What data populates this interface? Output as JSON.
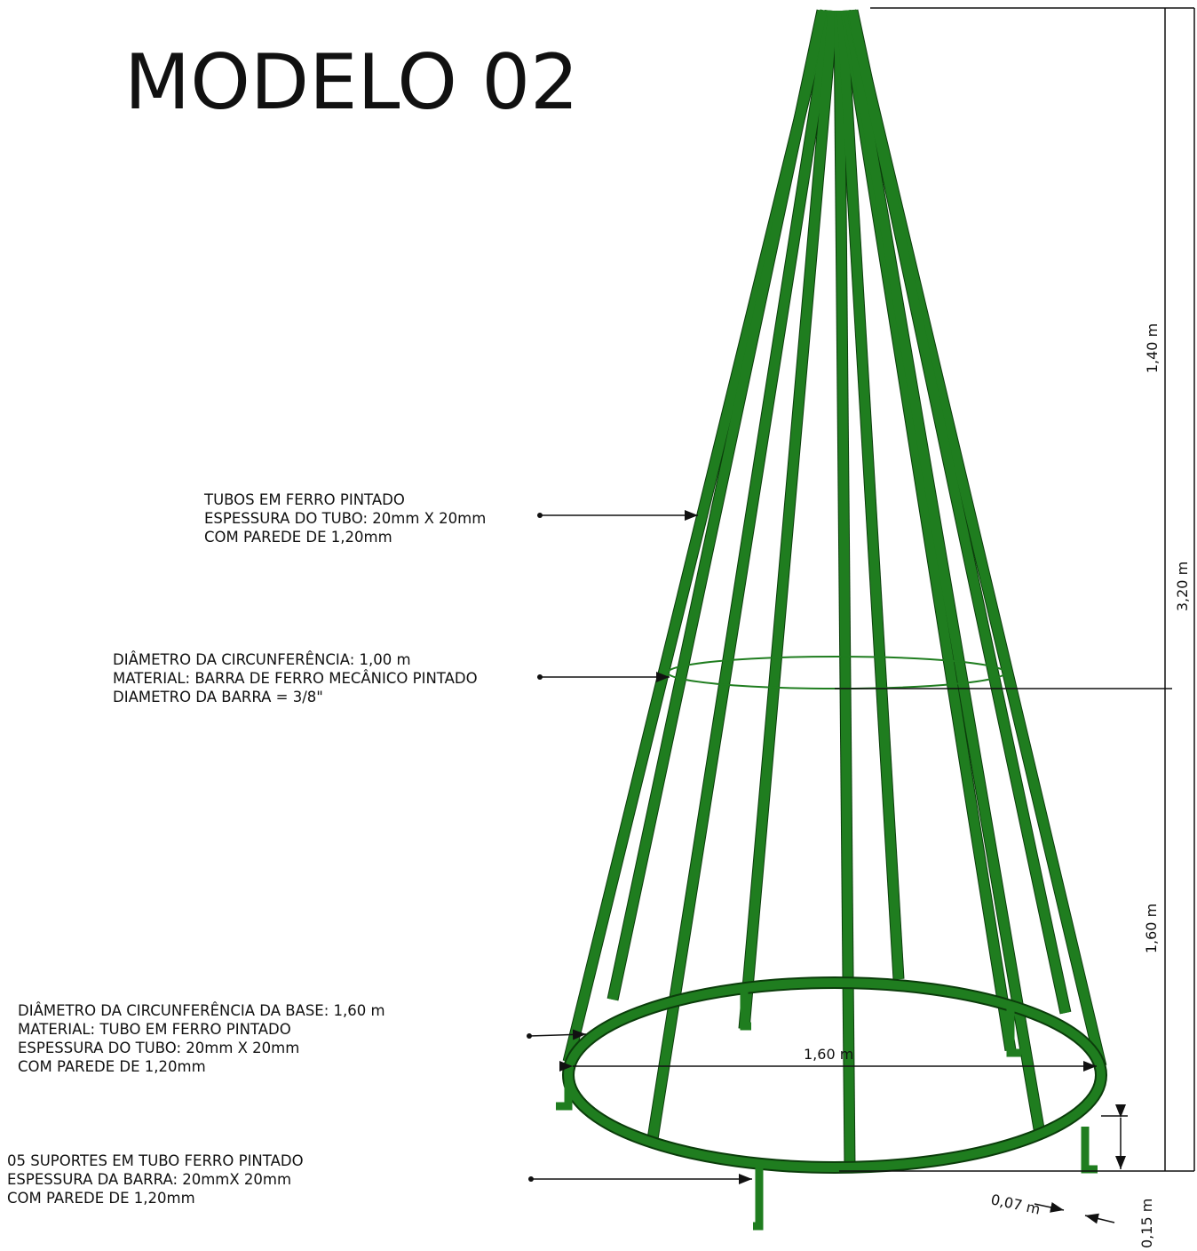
{
  "title": "MODELO 02",
  "annotations": [
    {
      "lines": [
        "TUBOS EM FERRO PINTADO",
        "ESPESSURA DO TUBO: 20mm X 20mm",
        "COM PAREDE DE 1,20mm"
      ]
    },
    {
      "lines": [
        "DIÂMETRO DA CIRCUNFERÊNCIA: 1,00 m",
        "MATERIAL: BARRA DE FERRO MECÂNICO PINTADO",
        "DIAMETRO DA BARRA = 3/8\""
      ]
    },
    {
      "lines": [
        "DIÂMETRO DA CIRCUNFERÊNCIA DA BASE: 1,60 m",
        "MATERIAL: TUBO EM FERRO PINTADO",
        "ESPESSURA DO TUBO: 20mm X 20mm",
        "COM PAREDE DE 1,20mm"
      ]
    },
    {
      "lines": [
        "05 SUPORTES EM TUBO FERRO PINTADO",
        "ESPESSURA DA BARRA: 20mmX 20mm",
        "COM PAREDE DE 1,20mm"
      ]
    }
  ],
  "dimensions": [
    {
      "label": "1,40 m"
    },
    {
      "label": "3,20 m"
    },
    {
      "label": "1,60 m"
    },
    {
      "label": "1,60 m"
    },
    {
      "label": "0,07 m"
    },
    {
      "label": "0,15 m"
    }
  ]
}
